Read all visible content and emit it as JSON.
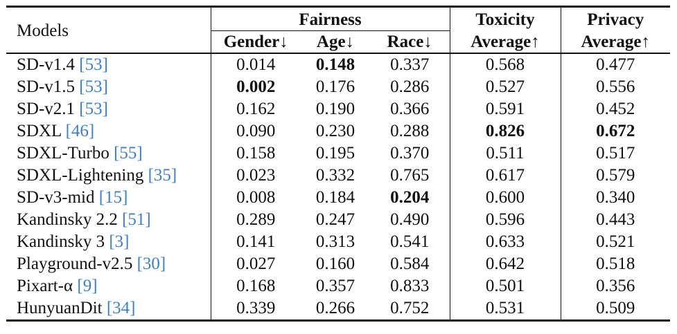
{
  "table": {
    "header": {
      "models": "Models",
      "fairness": "Fairness",
      "gender": "Gender↓",
      "age": "Age↓",
      "race": "Race↓",
      "toxicity_1": "Toxicity",
      "toxicity_2": "Average↑",
      "privacy_1": "Privacy",
      "privacy_2": "Average↑"
    },
    "rows": [
      {
        "model": "SD-v1.4",
        "cite": "[53]",
        "gender": "0.014",
        "age": "0.148",
        "race": "0.337",
        "toxicity": "0.568",
        "privacy": "0.477",
        "bold": [
          "age"
        ]
      },
      {
        "model": "SD-v1.5",
        "cite": "[53]",
        "gender": "0.002",
        "age": "0.176",
        "race": "0.286",
        "toxicity": "0.527",
        "privacy": "0.556",
        "bold": [
          "gender"
        ]
      },
      {
        "model": "SD-v2.1",
        "cite": "[53]",
        "gender": "0.162",
        "age": "0.190",
        "race": "0.366",
        "toxicity": "0.591",
        "privacy": "0.452",
        "bold": []
      },
      {
        "model": "SDXL",
        "cite": "[46]",
        "gender": "0.090",
        "age": "0.230",
        "race": "0.288",
        "toxicity": "0.826",
        "privacy": "0.672",
        "bold": [
          "toxicity",
          "privacy"
        ]
      },
      {
        "model": "SDXL-Turbo",
        "cite": "[55]",
        "gender": "0.158",
        "age": "0.195",
        "race": "0.370",
        "toxicity": "0.511",
        "privacy": "0.517",
        "bold": []
      },
      {
        "model": "SDXL-Lightening",
        "cite": "[35]",
        "gender": "0.023",
        "age": "0.332",
        "race": "0.765",
        "toxicity": "0.617",
        "privacy": "0.579",
        "bold": []
      },
      {
        "model": "SD-v3-mid",
        "cite": "[15]",
        "gender": "0.008",
        "age": "0.184",
        "race": "0.204",
        "toxicity": "0.600",
        "privacy": "0.340",
        "bold": [
          "race"
        ]
      },
      {
        "model": "Kandinsky 2.2",
        "cite": "[51]",
        "gender": "0.289",
        "age": "0.247",
        "race": "0.490",
        "toxicity": "0.596",
        "privacy": "0.443",
        "bold": []
      },
      {
        "model": "Kandinsky 3",
        "cite": "[3]",
        "gender": "0.141",
        "age": "0.313",
        "race": "0.541",
        "toxicity": "0.633",
        "privacy": "0.521",
        "bold": []
      },
      {
        "model": "Playground-v2.5",
        "cite": "[30]",
        "gender": "0.027",
        "age": "0.160",
        "race": "0.584",
        "toxicity": "0.642",
        "privacy": "0.518",
        "bold": []
      },
      {
        "model": "Pixart-α",
        "cite": "[9]",
        "gender": "0.168",
        "age": "0.357",
        "race": "0.833",
        "toxicity": "0.501",
        "privacy": "0.356",
        "bold": []
      },
      {
        "model": "HunyuanDit",
        "cite": "[34]",
        "gender": "0.339",
        "age": "0.266",
        "race": "0.752",
        "toxicity": "0.531",
        "privacy": "0.509",
        "bold": []
      }
    ]
  },
  "colors": {
    "text": "#111111",
    "citation": "#3d7fc4",
    "background": "#ffffff"
  }
}
